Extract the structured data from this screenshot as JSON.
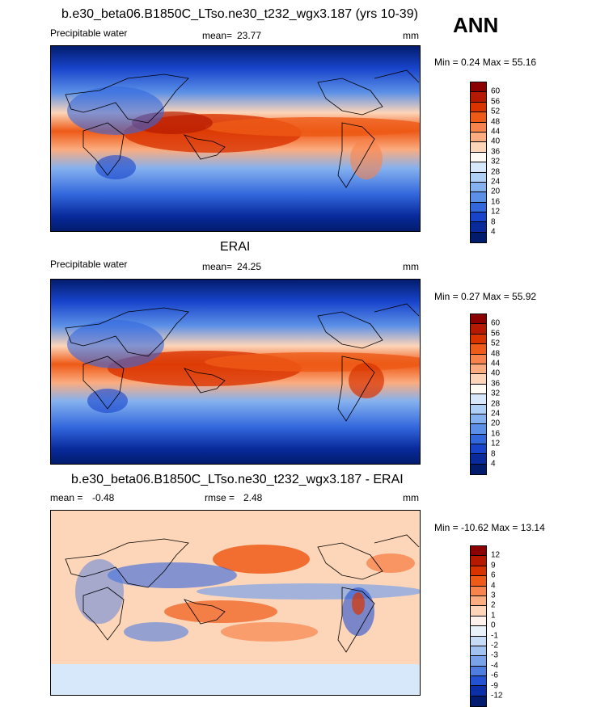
{
  "season": "ANN",
  "panel1": {
    "title": "b.e30_beta06.B1850C_LTso.ne30_t232_wgx3.187 (yrs 10-39)",
    "variable": "Precipitable water",
    "mean_label": "mean=",
    "mean_value": "23.77",
    "units": "mm",
    "minmax": "Min =   0.24 Max =   55.16",
    "levels": [
      "60",
      "56",
      "52",
      "48",
      "44",
      "40",
      "36",
      "32",
      "28",
      "24",
      "20",
      "16",
      "12",
      "8",
      "4"
    ],
    "colors": [
      "#8b0000",
      "#b51a00",
      "#d93300",
      "#ee5a17",
      "#f7844d",
      "#fbac80",
      "#fdd5b8",
      "#fffaf4",
      "#d7e8fb",
      "#b0cff5",
      "#85b1ef",
      "#5b90e6",
      "#3368dd",
      "#1844cc",
      "#082a9b",
      "#021c6c"
    ]
  },
  "panel2": {
    "title": "ERAI",
    "variable": "Precipitable water",
    "mean_label": "mean=",
    "mean_value": "24.25",
    "units": "mm",
    "minmax": "Min =   0.27 Max =   55.92",
    "levels": [
      "60",
      "56",
      "52",
      "48",
      "44",
      "40",
      "36",
      "32",
      "28",
      "24",
      "20",
      "16",
      "12",
      "8",
      "4"
    ],
    "colors": [
      "#8b0000",
      "#b51a00",
      "#d93300",
      "#ee5a17",
      "#f7844d",
      "#fbac80",
      "#fdd5b8",
      "#fffaf4",
      "#d7e8fb",
      "#b0cff5",
      "#85b1ef",
      "#5b90e6",
      "#3368dd",
      "#1844cc",
      "#082a9b",
      "#021c6c"
    ]
  },
  "panel3": {
    "title": "b.e30_beta06.B1850C_LTso.ne30_t232_wgx3.187 - ERAI",
    "mean_label": "mean =",
    "mean_value": "-0.48",
    "rmse_label": "rmse =",
    "rmse_value": "2.48",
    "units": "mm",
    "minmax": "Min = -10.62 Max =   13.14",
    "levels": [
      "12",
      "9",
      "6",
      "4",
      "3",
      "2",
      "1",
      "0",
      "-1",
      "-2",
      "-3",
      "-4",
      "-6",
      "-9",
      "-12"
    ],
    "colors": [
      "#8b0000",
      "#b51a00",
      "#d93300",
      "#ee5a17",
      "#f7844d",
      "#fbac80",
      "#fdd5b8",
      "#fff3ec",
      "#e9f1fb",
      "#c6dcf6",
      "#a2c2f0",
      "#7aa2e8",
      "#4f7ee0",
      "#2352d2",
      "#0c2fa8",
      "#031c70"
    ]
  }
}
